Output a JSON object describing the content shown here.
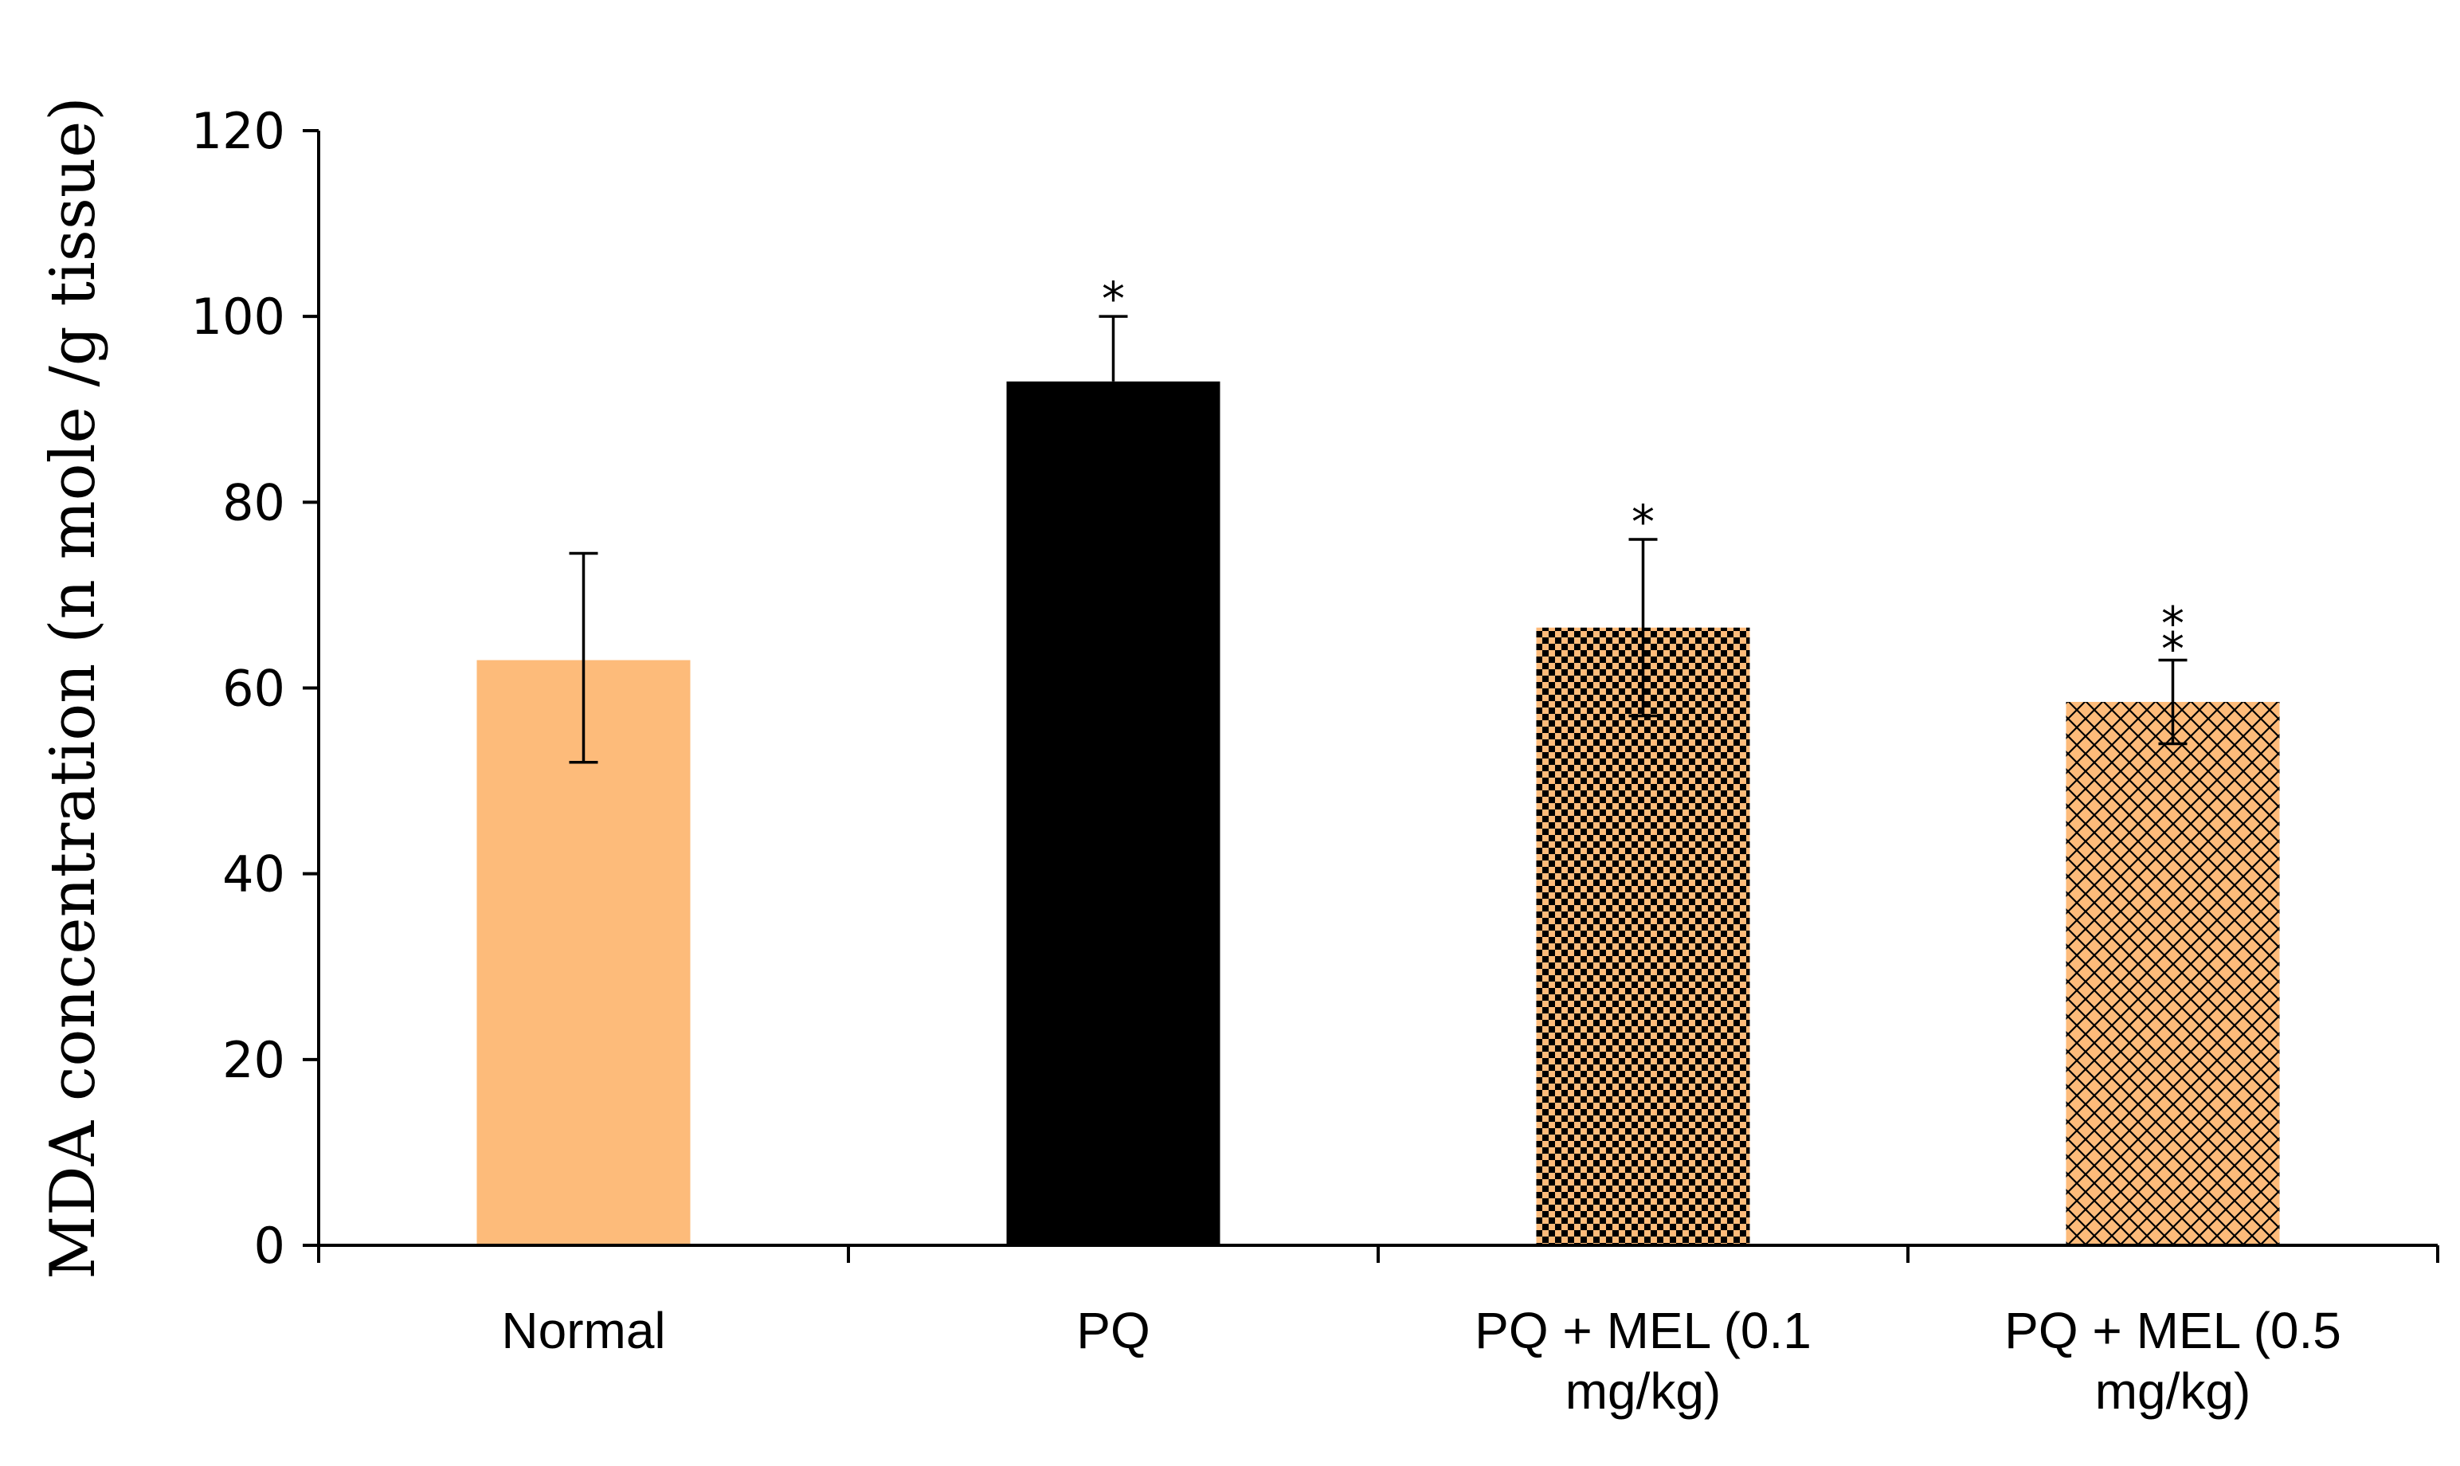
{
  "chart_data": {
    "type": "bar",
    "title": "",
    "xlabel": "",
    "ylabel": "MDA concentration (n mole /g tissue)",
    "ylim": [
      0,
      120
    ],
    "yticks": [
      0,
      20,
      40,
      60,
      80,
      100,
      120
    ],
    "grid": false,
    "categories": [
      [
        "Normal"
      ],
      [
        "PQ"
      ],
      [
        "PQ + MEL (0.1",
        "mg/kg)"
      ],
      [
        "PQ + MEL (0.5",
        "mg/kg)"
      ]
    ],
    "values": [
      63,
      93,
      66.5,
      58.5
    ],
    "error_upper": [
      74.5,
      100,
      76,
      63
    ],
    "error_lower": [
      52,
      93,
      57,
      54
    ],
    "annotations": [
      "",
      "*",
      "*",
      "**"
    ],
    "fills": [
      "solid",
      "solid",
      "checker",
      "crosshatch"
    ],
    "colors": [
      "#FDBB7A",
      "#000000",
      "#FDBB7A",
      "#FDBB7A"
    ],
    "pattern_color": "#000000"
  }
}
